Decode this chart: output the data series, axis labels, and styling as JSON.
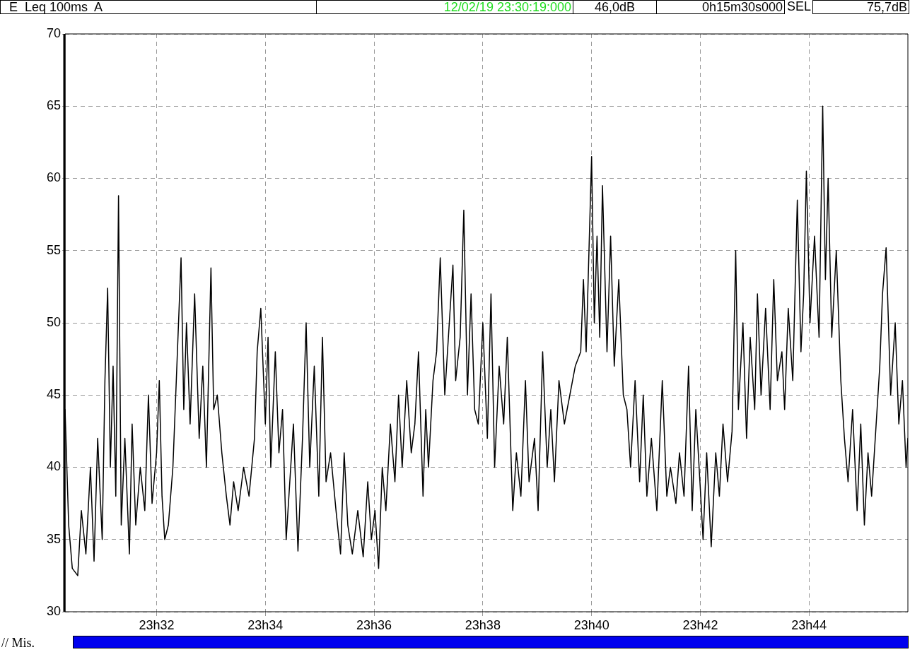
{
  "chart_data": {
    "type": "line",
    "annotations": [
      "E  Leq 100ms  A",
      "12/02/19 23:30:19:000",
      "46,0dB",
      "0h15m30s000",
      "SEL",
      "75,7dB",
      "// Mis."
    ],
    "x": [
      "--02-12T23:30:19",
      "--02-12T23:30:23",
      "--02-12T23:30:27",
      "--02-12T23:30:33",
      "--02-12T23:30:37",
      "--02-12T23:30:42",
      "--02-12T23:30:47",
      "--02-12T23:30:51",
      "--02-12T23:30:55",
      "--02-12T23:31:00",
      "--02-12T23:31:03",
      "--02-12T23:31:06",
      "--02-12T23:31:09",
      "--02-12T23:31:12",
      "--02-12T23:31:15",
      "--02-12T23:31:18",
      "--02-12T23:31:21",
      "--02-12T23:31:25",
      "--02-12T23:31:30",
      "--02-12T23:31:33",
      "--02-12T23:31:37",
      "--02-12T23:31:42",
      "--02-12T23:31:47",
      "--02-12T23:31:51",
      "--02-12T23:31:55",
      "--02-12T23:32:00",
      "--02-12T23:32:03",
      "--02-12T23:32:06",
      "--02-12T23:32:09",
      "--02-12T23:32:13",
      "--02-12T23:32:18",
      "--02-12T23:32:23",
      "--02-12T23:32:27",
      "--02-12T23:32:30",
      "--02-12T23:32:33",
      "--02-12T23:32:37",
      "--02-12T23:32:42",
      "--02-12T23:32:47",
      "--02-12T23:32:51",
      "--02-12T23:32:55",
      "--02-12T23:33:00",
      "--02-12T23:33:03",
      "--02-12T23:33:07",
      "--02-12T23:33:12",
      "--02-12T23:33:17",
      "--02-12T23:33:21",
      "--02-12T23:33:25",
      "--02-12T23:33:30",
      "--02-12T23:33:36",
      "--02-12T23:33:42",
      "--02-12T23:33:48",
      "--02-12T23:33:51",
      "--02-12T23:33:55",
      "--02-12T23:34:00",
      "--02-12T23:34:03",
      "--02-12T23:34:06",
      "--02-12T23:34:11",
      "--02-12T23:34:15",
      "--02-12T23:34:19",
      "--02-12T23:34:23",
      "--02-12T23:34:27",
      "--02-12T23:34:31",
      "--02-12T23:34:36",
      "--02-12T23:34:41",
      "--02-12T23:34:45",
      "--02-12T23:34:49",
      "--02-12T23:34:54",
      "--02-12T23:34:59",
      "--02-12T23:35:03",
      "--02-12T23:35:07",
      "--02-12T23:35:12",
      "--02-12T23:35:18",
      "--02-12T23:35:23",
      "--02-12T23:35:27",
      "--02-12T23:35:31",
      "--02-12T23:35:36",
      "--02-12T23:35:42",
      "--02-12T23:35:48",
      "--02-12T23:35:53",
      "--02-12T23:35:57",
      "--02-12T23:36:01",
      "--02-12T23:36:05",
      "--02-12T23:36:09",
      "--02-12T23:36:13",
      "--02-12T23:36:18",
      "--02-12T23:36:23",
      "--02-12T23:36:27",
      "--02-12T23:36:31",
      "--02-12T23:36:36",
      "--02-12T23:36:41",
      "--02-12T23:36:45",
      "--02-12T23:36:49",
      "--02-12T23:36:54",
      "--02-12T23:36:57",
      "--02-12T23:37:00",
      "--02-12T23:37:05",
      "--02-12T23:37:09",
      "--02-12T23:37:13",
      "--02-12T23:37:18",
      "--02-12T23:37:23",
      "--02-12T23:37:27",
      "--02-12T23:37:30",
      "--02-12T23:37:35",
      "--02-12T23:37:39",
      "--02-12T23:37:43",
      "--02-12T23:37:47",
      "--02-12T23:37:51",
      "--02-12T23:37:55",
      "--02-12T23:38:00",
      "--02-12T23:38:05",
      "--02-12T23:38:09",
      "--02-12T23:38:13",
      "--02-12T23:38:18",
      "--02-12T23:38:23",
      "--02-12T23:38:27",
      "--02-12T23:38:33",
      "--02-12T23:38:37",
      "--02-12T23:38:42",
      "--02-12T23:38:47",
      "--02-12T23:38:51",
      "--02-12T23:38:57",
      "--02-12T23:39:01",
      "--02-12T23:39:06",
      "--02-12T23:39:11",
      "--02-12T23:39:15",
      "--02-12T23:39:19",
      "--02-12T23:39:24",
      "--02-12T23:39:30",
      "--02-12T23:39:36",
      "--02-12T23:39:42",
      "--02-12T23:39:48",
      "--02-12T23:39:51",
      "--02-12T23:39:54",
      "--02-12T23:40:00",
      "--02-12T23:40:03",
      "--02-12T23:40:06",
      "--02-12T23:40:09",
      "--02-12T23:40:12",
      "--02-12T23:40:17",
      "--02-12T23:40:21",
      "--02-12T23:40:25",
      "--02-12T23:40:30",
      "--02-12T23:40:35",
      "--02-12T23:40:39",
      "--02-12T23:40:43",
      "--02-12T23:40:48",
      "--02-12T23:40:53",
      "--02-12T23:40:57",
      "--02-12T23:41:01",
      "--02-12T23:41:06",
      "--02-12T23:41:12",
      "--02-12T23:41:18",
      "--02-12T23:41:23",
      "--02-12T23:41:27",
      "--02-12T23:41:33",
      "--02-12T23:41:37",
      "--02-12T23:41:42",
      "--02-12T23:41:47",
      "--02-12T23:41:51",
      "--02-12T23:41:55",
      "--02-12T23:42:00",
      "--02-12T23:42:03",
      "--02-12T23:42:07",
      "--02-12T23:42:12",
      "--02-12T23:42:17",
      "--02-12T23:42:21",
      "--02-12T23:42:25",
      "--02-12T23:42:30",
      "--02-12T23:42:35",
      "--02-12T23:42:39",
      "--02-12T23:42:42",
      "--02-12T23:42:47",
      "--02-12T23:42:51",
      "--02-12T23:42:55",
      "--02-12T23:43:00",
      "--02-12T23:43:03",
      "--02-12T23:43:07",
      "--02-12T23:43:12",
      "--02-12T23:43:17",
      "--02-12T23:43:21",
      "--02-12T23:43:25",
      "--02-12T23:43:30",
      "--02-12T23:43:33",
      "--02-12T23:43:37",
      "--02-12T23:43:42",
      "--02-12T23:43:47",
      "--02-12T23:43:51",
      "--02-12T23:43:54",
      "--02-12T23:43:57",
      "--02-12T23:44:01",
      "--02-12T23:44:06",
      "--02-12T23:44:11",
      "--02-12T23:44:15",
      "--02-12T23:44:18",
      "--02-12T23:44:21",
      "--02-12T23:44:25",
      "--02-12T23:44:30",
      "--02-12T23:44:35",
      "--02-12T23:44:39",
      "--02-12T23:44:43",
      "--02-12T23:44:48",
      "--02-12T23:44:53",
      "--02-12T23:44:57",
      "--02-12T23:45:01",
      "--02-12T23:45:05",
      "--02-12T23:45:09",
      "--02-12T23:45:13",
      "--02-12T23:45:18",
      "--02-12T23:45:21",
      "--02-12T23:45:25",
      "--02-12T23:45:30",
      "--02-12T23:45:35",
      "--02-12T23:45:39",
      "--02-12T23:45:43",
      "--02-12T23:45:47",
      "--02-12T23:45:49"
    ],
    "series": [
      {
        "color": "#000000",
        "values": [
          44,
          36,
          33,
          32.5,
          37,
          34,
          40,
          33.5,
          42,
          35,
          46,
          52.4,
          40,
          47,
          38,
          58.8,
          36,
          42,
          34,
          43,
          36,
          40,
          37,
          45,
          37.5,
          41,
          46,
          38,
          35,
          36,
          40,
          48,
          54.5,
          44,
          50,
          43,
          52,
          42,
          47,
          40,
          53.8,
          44,
          45,
          41,
          38,
          36,
          39,
          37,
          40,
          38,
          42,
          48,
          51,
          43,
          49,
          40,
          48,
          41,
          44,
          35,
          39,
          43,
          34.2,
          42,
          50,
          40,
          47,
          38,
          49,
          39,
          41,
          37,
          34,
          41,
          36,
          34,
          37,
          33.8,
          39,
          35,
          37,
          33,
          40,
          37,
          43,
          39,
          45,
          40,
          46,
          41,
          43,
          48,
          38,
          44,
          40,
          46,
          48,
          54.5,
          45,
          50,
          54,
          46,
          49,
          57.8,
          45,
          52,
          44,
          43,
          50,
          42,
          52,
          40,
          47,
          43,
          49,
          37,
          41,
          38,
          46,
          39,
          42,
          37,
          48,
          40,
          44,
          39,
          46,
          43,
          45,
          47,
          48,
          53,
          48,
          61.5,
          50,
          56,
          49,
          59.5,
          48,
          56,
          47,
          53,
          45,
          44,
          40,
          46,
          39,
          45,
          38,
          42,
          37,
          46,
          38,
          40,
          37.5,
          41,
          38,
          47,
          37,
          44,
          38.5,
          35,
          41,
          34.5,
          41,
          38,
          43,
          39,
          42.5,
          55,
          44,
          50,
          42,
          49,
          44,
          52,
          45,
          51,
          44,
          53,
          46,
          48,
          44,
          51,
          46,
          58.5,
          48,
          52,
          60.5,
          50,
          56,
          49,
          65,
          53,
          60,
          49,
          55,
          46,
          42,
          39,
          44,
          37,
          43,
          36,
          41,
          38,
          42,
          47,
          52,
          55.2,
          45,
          50,
          43,
          46,
          40,
          42
        ]
      }
    ],
    "xlim": [
      "--02-12T23:30:19",
      "--02-12T23:45:49"
    ],
    "xticks": [
      {
        "value": "--02-12T23:32",
        "label": "23h32"
      },
      {
        "value": "--02-12T23:34",
        "label": "23h34"
      },
      {
        "value": "--02-12T23:36",
        "label": "23h36"
      },
      {
        "value": "--02-12T23:38",
        "label": "23h38"
      },
      {
        "value": "--02-12T23:40",
        "label": "23h40"
      },
      {
        "value": "--02-12T23:42",
        "label": "23h42"
      },
      {
        "value": "--02-12T23:44",
        "label": "23h44"
      }
    ],
    "ylim": [
      30,
      70
    ],
    "yticks": [
      30,
      35,
      40,
      45,
      50,
      55,
      60,
      65,
      70
    ],
    "grid": true,
    "legend": false,
    "marker": "none",
    "line_style": "solid"
  }
}
